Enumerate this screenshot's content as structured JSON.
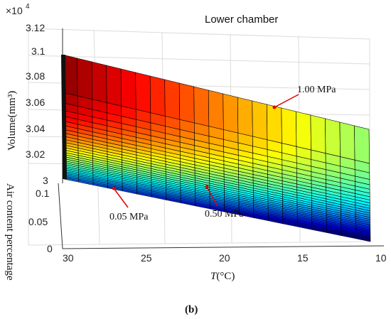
{
  "chart_data": {
    "type": "surface",
    "title": "Lower chamber",
    "zlabel": "Volume(mm³)",
    "zscale_label": "×10",
    "zscale_exponent": "4",
    "ylabel": "Air content percentage",
    "xlabel_symbol": "T",
    "xlabel_unit": "(°C)",
    "xlim": [
      10,
      30
    ],
    "ylim": [
      0,
      0.1
    ],
    "zlim": [
      3.0,
      3.12
    ],
    "x_ticks": [
      "30",
      "25",
      "20",
      "15",
      "10"
    ],
    "y_ticks": [
      "0",
      "0.05",
      "0.1"
    ],
    "z_ticks": [
      "3.12",
      "3.1",
      "3.08",
      "3.06",
      "3.04",
      "3.02",
      "3"
    ],
    "colormap": "jet",
    "grid": true,
    "annotations": [
      {
        "text": "1.00 MPa",
        "color": "#e00000"
      },
      {
        "text": "0.50 MPa",
        "color": "#e00000"
      },
      {
        "text": "0.05 MPa",
        "color": "#e00000"
      }
    ],
    "surface_corners": {
      "T30_air0.1_volume": 3.1,
      "T10_air0.1_volume": 3.038,
      "T30_air0_volume": 3.0,
      "T10_air0_volume": 2.97
    }
  },
  "caption": "(b)"
}
